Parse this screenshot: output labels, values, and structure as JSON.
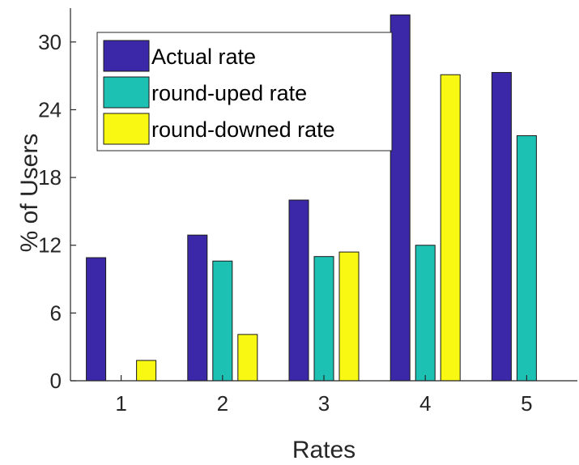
{
  "chart_data": {
    "type": "bar",
    "title": "",
    "xlabel": "Rates",
    "ylabel": "% of Users",
    "categories": [
      "1",
      "2",
      "3",
      "4",
      "5"
    ],
    "ylim": [
      0,
      33
    ],
    "yticks": [
      0,
      6,
      12,
      18,
      24,
      30
    ],
    "grid": false,
    "legend_position": "top-left",
    "series": [
      {
        "name": "Actual rate",
        "color": "#3a28a8",
        "values": [
          10.9,
          12.9,
          16.0,
          32.4,
          27.3
        ]
      },
      {
        "name": "round-uped rate",
        "color": "#1cc1b4",
        "values": [
          0.0,
          10.6,
          11.0,
          12.0,
          21.7
        ]
      },
      {
        "name": "round-downed rate",
        "color": "#f8f812",
        "values": [
          1.8,
          4.1,
          11.4,
          27.1,
          0.0
        ]
      }
    ]
  }
}
